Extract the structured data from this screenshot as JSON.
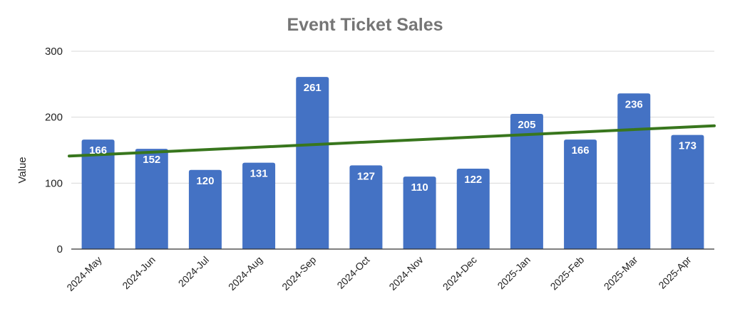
{
  "chart_data": {
    "type": "bar",
    "title": "Event Ticket Sales",
    "xlabel": "",
    "ylabel": "Value",
    "categories": [
      "2024-May",
      "2024-Jun",
      "2024-Jul",
      "2024-Aug",
      "2024-Sep",
      "2024-Oct",
      "2024-Nov",
      "2024-Dec",
      "2025-Jan",
      "2025-Feb",
      "2025-Mar",
      "2025-Apr"
    ],
    "values": [
      166,
      152,
      120,
      131,
      261,
      127,
      110,
      122,
      205,
      166,
      236,
      173
    ],
    "ylim": [
      0,
      300
    ],
    "yticks": [
      "0",
      "100",
      "200",
      "300"
    ],
    "grid": true,
    "legend": "none",
    "data_labels": true,
    "bar_color": "#4472c4",
    "trendline": {
      "type": "linear",
      "color": "#38761d"
    }
  }
}
